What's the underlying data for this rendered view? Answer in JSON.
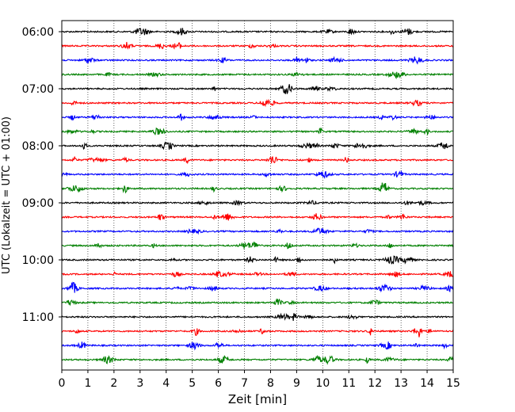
{
  "chart_data": {
    "type": "line",
    "title": "",
    "xlabel": "Zeit  [min]",
    "ylabel": "UTC (Lokalzeit = UTC + 01:00)",
    "xlim": [
      0,
      15
    ],
    "x_ticks": [
      "0",
      "1",
      "2",
      "3",
      "4",
      "5",
      "6",
      "7",
      "8",
      "9",
      "10",
      "11",
      "12",
      "13",
      "14",
      "15"
    ],
    "y_ticks": [
      "06:00",
      "07:00",
      "08:00",
      "09:00",
      "10:00",
      "11:00"
    ],
    "grid": "vertical dotted at each minute",
    "row_interval_min": 15,
    "series": [
      {
        "start": "06:00",
        "color": "#000000"
      },
      {
        "start": "06:15",
        "color": "#ff0000"
      },
      {
        "start": "06:30",
        "color": "#0000ff"
      },
      {
        "start": "06:45",
        "color": "#008000"
      },
      {
        "start": "07:00",
        "color": "#000000"
      },
      {
        "start": "07:15",
        "color": "#ff0000"
      },
      {
        "start": "07:30",
        "color": "#0000ff"
      },
      {
        "start": "07:45",
        "color": "#008000"
      },
      {
        "start": "08:00",
        "color": "#000000"
      },
      {
        "start": "08:15",
        "color": "#ff0000"
      },
      {
        "start": "08:30",
        "color": "#0000ff"
      },
      {
        "start": "08:45",
        "color": "#008000"
      },
      {
        "start": "09:00",
        "color": "#000000"
      },
      {
        "start": "09:15",
        "color": "#ff0000"
      },
      {
        "start": "09:30",
        "color": "#0000ff"
      },
      {
        "start": "09:45",
        "color": "#008000"
      },
      {
        "start": "10:00",
        "color": "#000000"
      },
      {
        "start": "10:15",
        "color": "#ff0000"
      },
      {
        "start": "10:30",
        "color": "#0000ff"
      },
      {
        "start": "10:45",
        "color": "#008000"
      },
      {
        "start": "11:00",
        "color": "#000000"
      },
      {
        "start": "11:15",
        "color": "#ff0000"
      },
      {
        "start": "11:30",
        "color": "#0000ff"
      },
      {
        "start": "11:45",
        "color": "#008000"
      }
    ]
  }
}
